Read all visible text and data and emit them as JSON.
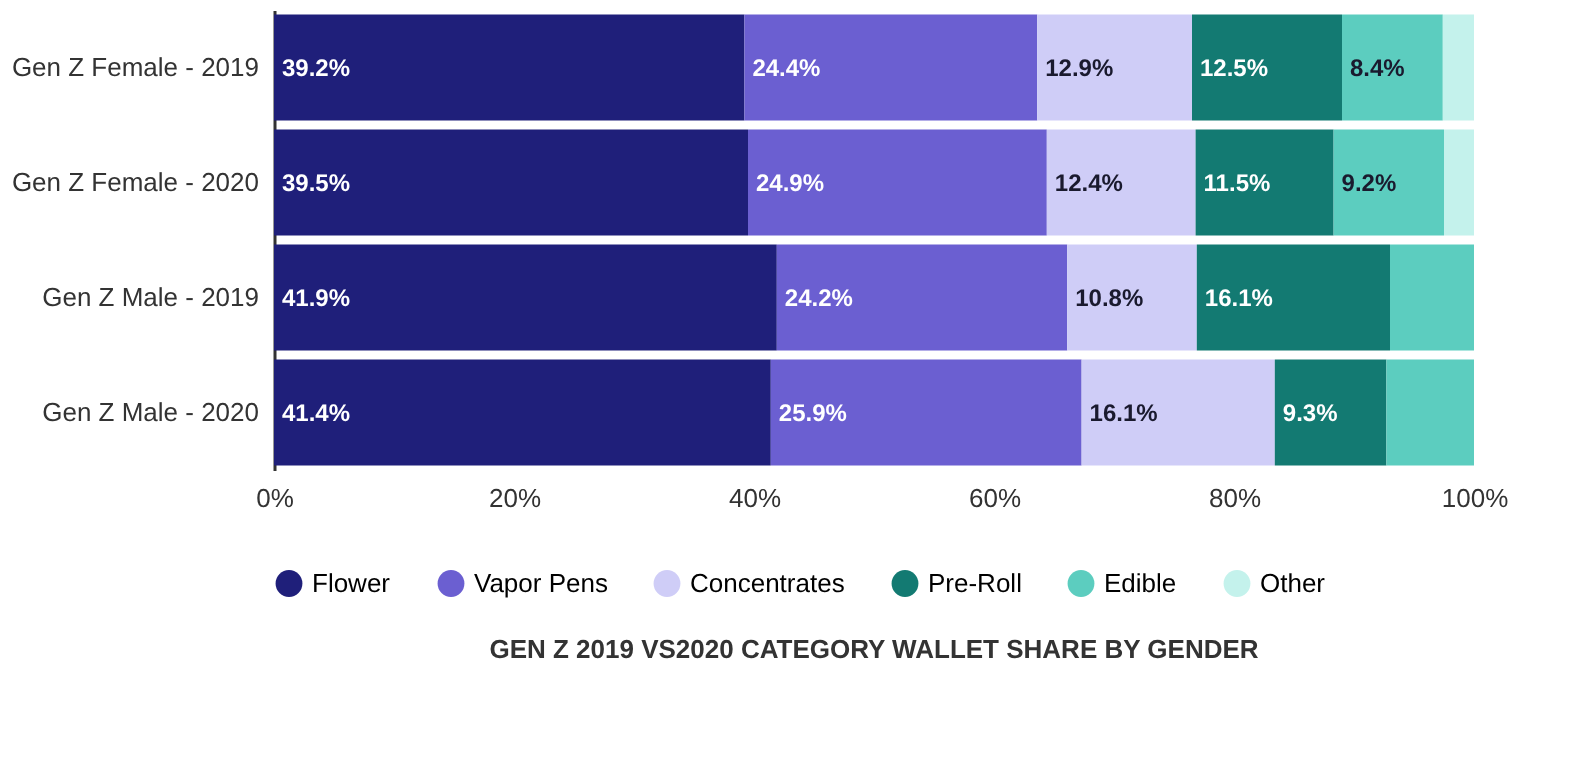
{
  "chart_data": {
    "type": "bar",
    "orientation": "horizontal",
    "stacked": true,
    "title": "GEN Z 2019 VS2020 CATEGORY WALLET SHARE BY GENDER",
    "categories": [
      "Gen Z Female - 2019",
      "Gen Z Female - 2020",
      "Gen Z Male - 2019",
      "Gen Z Male - 2020"
    ],
    "xlim": [
      0,
      100
    ],
    "xticks": [
      {
        "value": 0,
        "label": "0%"
      },
      {
        "value": 20,
        "label": "20%"
      },
      {
        "value": 40,
        "label": "40%"
      },
      {
        "value": 60,
        "label": "60%"
      },
      {
        "value": 80,
        "label": "80%"
      },
      {
        "value": 100,
        "label": "100%"
      }
    ],
    "legend": "bottom",
    "grid": false,
    "series": [
      {
        "name": "Flower",
        "color": "#1f1f7a",
        "values": [
          39.2,
          39.5,
          41.9,
          41.4
        ],
        "value_labels": [
          "39.2%",
          "39.5%",
          "41.9%",
          "41.4%"
        ]
      },
      {
        "name": "Vapor Pens",
        "color": "#6b5fd1",
        "values": [
          24.4,
          24.9,
          24.2,
          25.9
        ],
        "value_labels": [
          "24.4%",
          "24.9%",
          "24.2%",
          "25.9%"
        ]
      },
      {
        "name": "Concentrates",
        "color": "#cfcdf7",
        "values": [
          12.9,
          12.4,
          10.8,
          16.1
        ],
        "value_labels": [
          "12.9%",
          "12.4%",
          "10.8%",
          "16.1%"
        ]
      },
      {
        "name": "Pre-Roll",
        "color": "#137a72",
        "values": [
          12.5,
          11.5,
          16.1,
          9.3
        ],
        "value_labels": [
          "12.5%",
          "11.5%",
          "16.1%",
          "9.3%"
        ]
      },
      {
        "name": "Edible",
        "color": "#5ccdbf",
        "values": [
          8.4,
          9.2,
          7.0,
          7.3
        ],
        "value_labels": [
          "8.4%",
          "9.2%",
          null,
          null
        ]
      },
      {
        "name": "Other",
        "color": "#c4f2ec",
        "values": [
          2.6,
          2.5,
          0,
          0
        ],
        "value_labels": [
          null,
          null,
          null,
          null
        ]
      }
    ]
  }
}
